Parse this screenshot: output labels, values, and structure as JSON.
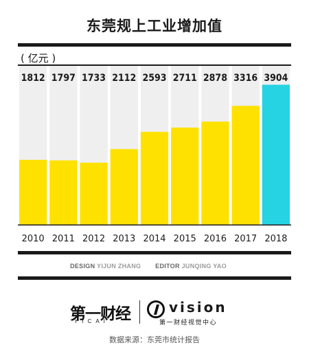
{
  "title": "东莞规上工业增加值",
  "unit": "( 亿元 )",
  "credits": {
    "design_label": "DESIGN",
    "design_name": "YIJUN ZHANG",
    "editor_label": "EDITOR",
    "editor_name": "JUNQING YAO"
  },
  "branding": {
    "yicai_logo": "第一财经",
    "yicai_sub": "YICAI",
    "vision_logo": "vision",
    "vision_sub": "第一财经视觉中心"
  },
  "source": "数据来源：东莞市统计报告",
  "colors": {
    "bar": "#ffe100",
    "highlight_bar": "#26d3e3",
    "panel": "#efefef",
    "text": "#1a1a1a"
  },
  "chart_data": {
    "type": "bar",
    "title": "东莞规上工业增加值",
    "ylabel": "( 亿元 )",
    "categories": [
      "2010",
      "2011",
      "2012",
      "2013",
      "2014",
      "2015",
      "2016",
      "2017",
      "2018"
    ],
    "values": [
      1812,
      1797,
      1733,
      2112,
      2593,
      2711,
      2878,
      3316,
      3904
    ],
    "data_labels": [
      "1812",
      "1797",
      "1733",
      "2112",
      "2593",
      "2711",
      "2878",
      "3316",
      "3904"
    ],
    "highlight": "2018",
    "grid": false,
    "legend": "none"
  }
}
